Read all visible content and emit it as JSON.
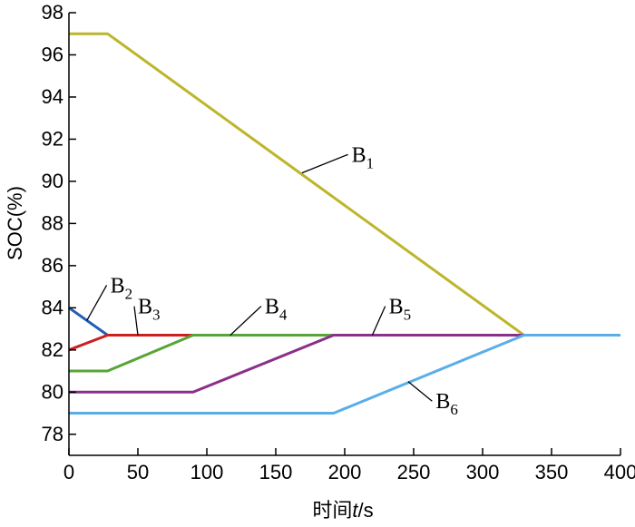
{
  "chart_data": {
    "type": "line",
    "xlabel": "时间",
    "xlabel_var": "t",
    "xlabel_unit": "/s",
    "ylabel": "SOC(%)",
    "xlim": [
      0,
      400
    ],
    "ylim": [
      77,
      98
    ],
    "x_ticks": [
      0,
      50,
      100,
      150,
      200,
      250,
      300,
      350,
      400
    ],
    "y_ticks": [
      78,
      80,
      82,
      84,
      86,
      88,
      90,
      92,
      94,
      96,
      98
    ],
    "grid": false,
    "legend": "none",
    "series": [
      {
        "name": "B",
        "sub": "1",
        "color": "#bdb52a",
        "x": [
          0,
          28,
          330,
          400
        ],
        "y": [
          97,
          97,
          82.7,
          82.7
        ]
      },
      {
        "name": "B",
        "sub": "2",
        "color": "#1f5fb4",
        "x": [
          0,
          28
        ],
        "y": [
          84,
          82.7
        ]
      },
      {
        "name": "B",
        "sub": "3",
        "color": "#cc2020",
        "x": [
          0,
          28,
          330
        ],
        "y": [
          82,
          82.7,
          82.7
        ]
      },
      {
        "name": "B",
        "sub": "4",
        "color": "#58a436",
        "x": [
          0,
          28,
          90,
          330
        ],
        "y": [
          81,
          81,
          82.7,
          82.7
        ]
      },
      {
        "name": "B",
        "sub": "5",
        "color": "#8b2f8b",
        "x": [
          0,
          90,
          192,
          330
        ],
        "y": [
          80,
          80,
          82.7,
          82.7
        ]
      },
      {
        "name": "B",
        "sub": "6",
        "color": "#5aaee8",
        "x": [
          0,
          192,
          330,
          400
        ],
        "y": [
          79,
          79,
          82.7,
          82.7
        ]
      }
    ],
    "annotations": [
      {
        "series": 0,
        "x": 169,
        "y": 90.4,
        "label_x": 205,
        "label_y": 91.1
      },
      {
        "series": 1,
        "x": 13,
        "y": 83.4,
        "label_x": 30,
        "label_y": 84.9
      },
      {
        "series": 2,
        "x": 50,
        "y": 82.7,
        "label_x": 50,
        "label_y": 83.9
      },
      {
        "series": 3,
        "x": 117,
        "y": 82.7,
        "label_x": 142,
        "label_y": 83.9
      },
      {
        "series": 4,
        "x": 220,
        "y": 82.7,
        "label_x": 232,
        "label_y": 83.9
      },
      {
        "series": 5,
        "x": 246,
        "y": 80.5,
        "label_x": 266,
        "label_y": 79.4
      }
    ]
  }
}
